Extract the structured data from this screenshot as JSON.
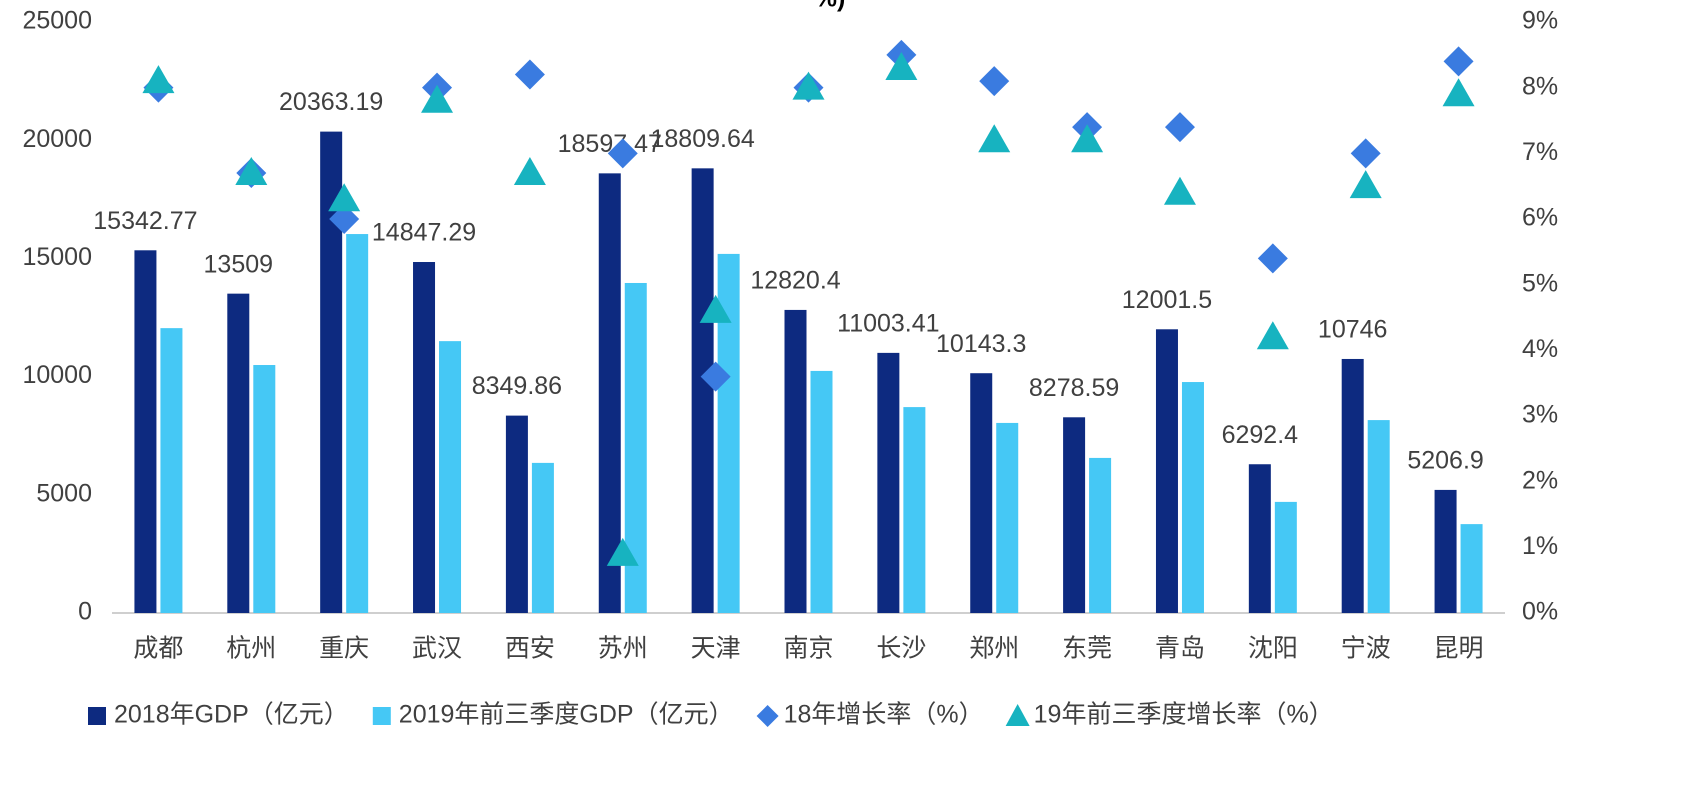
{
  "chart_data": {
    "type": "bar",
    "title": "%)",
    "categories": [
      "成都",
      "杭州",
      "重庆",
      "武汉",
      "西安",
      "苏州",
      "天津",
      "南京",
      "长沙",
      "郑州",
      "东莞",
      "青岛",
      "沈阳",
      "宁波",
      "昆明"
    ],
    "series": [
      {
        "name": "2018年GDP（亿元）",
        "color": "#0d2a80",
        "values": [
          15342.77,
          13509,
          20363.19,
          14847.29,
          8349.86,
          18597.47,
          18809.64,
          12820.4,
          11003.41,
          10143.3,
          8278.59,
          12001.5,
          6292.4,
          10746,
          5206.9
        ]
      },
      {
        "name": "2019年前三季度GDP（亿元）",
        "color": "#45c8f5",
        "values": [
          12050,
          10490,
          16030,
          11500,
          6350,
          13960,
          15190,
          10240,
          8710,
          8040,
          6560,
          9770,
          4700,
          8160,
          3760
        ]
      },
      {
        "name": "18年增长率（%）",
        "color": "#3a7be0",
        "axis": "y2",
        "marker": "diamond",
        "values": [
          8.0,
          6.7,
          6.0,
          8.0,
          8.2,
          7.0,
          3.6,
          8.0,
          8.5,
          8.1,
          7.4,
          7.4,
          5.4,
          7.0,
          8.4
        ]
      },
      {
        "name": "19年前三季度增长率（%）",
        "color": "#17b3c0",
        "axis": "y2",
        "marker": "triangle",
        "values": [
          8.1,
          6.7,
          6.3,
          7.8,
          6.7,
          0.9,
          4.6,
          8.0,
          8.3,
          7.2,
          7.2,
          6.4,
          4.2,
          6.5,
          7.9
        ]
      }
    ],
    "ylim": [
      0,
      25000
    ],
    "yticks": [
      0,
      5000,
      10000,
      15000,
      20000,
      25000
    ],
    "y2lim": [
      0,
      9
    ],
    "y2ticks": [
      {
        "value": 0,
        "label": "0%"
      },
      {
        "value": 1,
        "label": "1%"
      },
      {
        "value": 2,
        "label": "2%"
      },
      {
        "value": 3,
        "label": "3%"
      },
      {
        "value": 4,
        "label": "4%"
      },
      {
        "value": 5,
        "label": "5%"
      },
      {
        "value": 6,
        "label": "6%"
      },
      {
        "value": 7,
        "label": "7%"
      },
      {
        "value": 8,
        "label": "8%"
      },
      {
        "value": 9,
        "label": "9%"
      }
    ],
    "grid": false,
    "legend": "bottom"
  }
}
